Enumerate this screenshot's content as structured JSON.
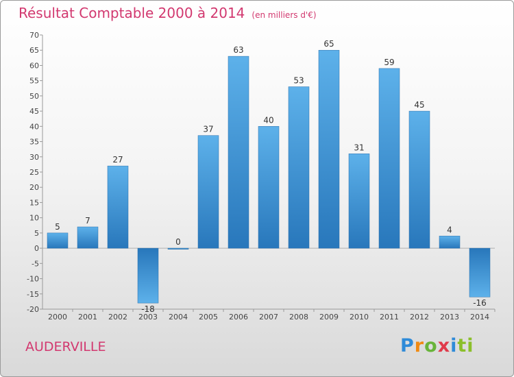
{
  "header": {
    "title": "Résultat Comptable 2000 à 2014",
    "unit": "(en milliers d'€)"
  },
  "footer": {
    "town": "AUDERVILLE",
    "logo": [
      "P",
      "r",
      "o",
      "x",
      "i",
      "ti"
    ]
  },
  "colors": {
    "accent": "#d2386f",
    "bar_light": "#5aaee8",
    "bar_dark": "#2a7cc0"
  },
  "chart_data": {
    "type": "bar",
    "title": "Résultat Comptable 2000 à 2014",
    "subtitle": "(en milliers d'€)",
    "xlabel": "",
    "ylabel": "",
    "categories": [
      "2000",
      "2001",
      "2002",
      "2003",
      "2004",
      "2005",
      "2006",
      "2007",
      "2008",
      "2009",
      "2010",
      "2011",
      "2012",
      "2013",
      "2014"
    ],
    "values": [
      5,
      7,
      27,
      -18,
      0,
      37,
      63,
      40,
      53,
      65,
      31,
      59,
      45,
      4,
      -16
    ],
    "ylim": [
      -20,
      70
    ],
    "yticks": [
      70,
      65,
      60,
      55,
      50,
      45,
      40,
      35,
      30,
      25,
      20,
      15,
      10,
      5,
      0,
      -5,
      -10,
      -15,
      -20
    ],
    "grid": false,
    "legend": "none"
  }
}
